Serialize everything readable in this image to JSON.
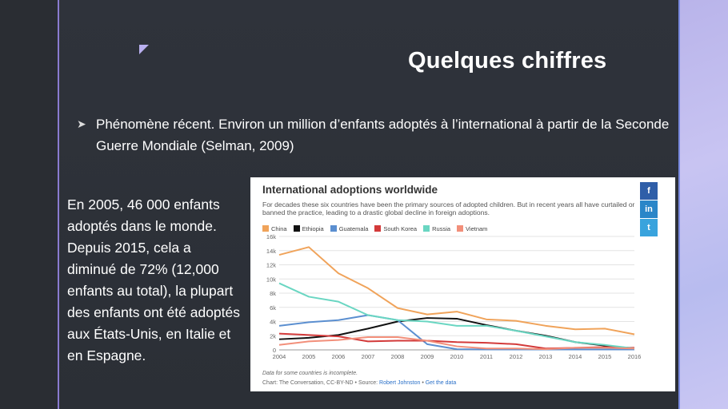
{
  "slide": {
    "title": "Quelques chiffres",
    "bullet": "Phénomène récent. Environ un million d’enfants adoptés à l’international à partir de la Seconde Guerre Mondiale (Selman, 2009)",
    "left_text": "En 2005, 46 000 enfants adoptés dans le monde. Depuis 2015, cela a diminué de 72% (12,000 enfants au total), la plupart des enfants ont été adoptés aux États-Unis, en Italie et en Espagne."
  },
  "card": {
    "title": "International adoptions worldwide",
    "subtitle": "For decades these six countries have been the primary sources of adopted children. But in recent years all have curtailed or banned the practice, leading to a drastic global decline in foreign adoptions.",
    "social": {
      "facebook": "f",
      "linkedin": "in",
      "twitter": "t"
    },
    "footnote": "Data for some countries is incomplete.",
    "source_prefix": "Chart: The Conversation, CC-BY-ND • Source: ",
    "source_author": "Robert Johnston",
    "source_sep": " • ",
    "source_link": "Get the data"
  },
  "colors": {
    "China": "#f0a35a",
    "Ethiopia": "#111111",
    "Guatemala": "#5b8fd0",
    "South Korea": "#d33a3a",
    "Russia": "#6ad6c2",
    "Vietnam": "#f28f7a"
  },
  "chart_data": {
    "type": "line",
    "x": [
      2004,
      2005,
      2006,
      2007,
      2008,
      2009,
      2010,
      2011,
      2012,
      2013,
      2014,
      2015,
      2016
    ],
    "ylim": [
      0,
      16000
    ],
    "yticks": [
      0,
      2000,
      4000,
      6000,
      8000,
      10000,
      12000,
      14000,
      16000
    ],
    "ytick_labels": [
      "0",
      "2k",
      "4k",
      "6k",
      "8k",
      "10k",
      "12k",
      "14k",
      "16k"
    ],
    "grid": true,
    "legend_position": "top",
    "series": [
      {
        "name": "China",
        "values": [
          13400,
          14500,
          10800,
          8700,
          5900,
          5000,
          5400,
          4300,
          4100,
          3400,
          2900,
          3000,
          2200
        ]
      },
      {
        "name": "Ethiopia",
        "values": [
          1500,
          1700,
          2100,
          3000,
          4000,
          4500,
          4400,
          3500,
          2700,
          2000,
          1100,
          600,
          200
        ]
      },
      {
        "name": "Guatemala",
        "values": [
          3400,
          3900,
          4200,
          4900,
          4200,
          800,
          100,
          50,
          50,
          50,
          50,
          50,
          50
        ]
      },
      {
        "name": "South Korea",
        "values": [
          2300,
          2100,
          1900,
          1200,
          1300,
          1300,
          1100,
          1000,
          800,
          200,
          300,
          400,
          300
        ]
      },
      {
        "name": "Russia",
        "values": [
          9400,
          7500,
          6800,
          4900,
          4200,
          4000,
          3400,
          3400,
          2700,
          1900,
          1100,
          700,
          200
        ]
      },
      {
        "name": "Vietnam",
        "values": [
          700,
          1200,
          1400,
          1800,
          1800,
          1300,
          500,
          200,
          200,
          100,
          300,
          300,
          200
        ]
      }
    ]
  }
}
